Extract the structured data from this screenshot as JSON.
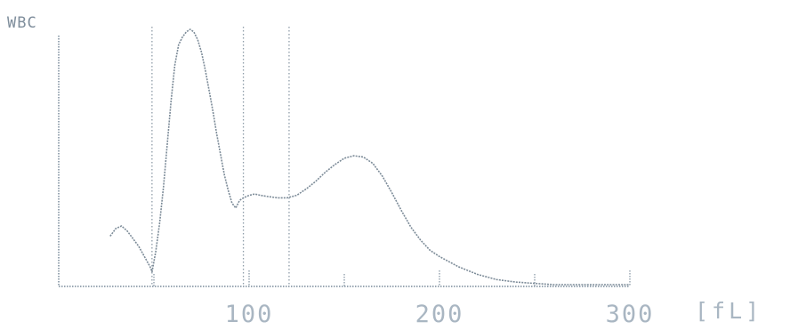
{
  "chart_data": {
    "type": "line",
    "title": "WBC",
    "xlabel": "[fL]",
    "ylabel": "",
    "xlim": [
      0,
      300
    ],
    "ylim": [
      0,
      100
    ],
    "x_ticks": [
      100,
      200,
      300
    ],
    "x_minor_ticks": [
      50,
      150,
      250
    ],
    "grid": false,
    "markers": [
      49,
      97,
      121
    ],
    "series": [
      {
        "x": [
          27,
          30,
          33,
          36,
          39,
          42,
          45,
          48,
          49,
          51,
          53,
          55,
          57,
          59,
          61,
          63,
          65,
          67,
          69,
          71,
          73,
          75,
          77,
          79,
          81,
          83,
          85,
          87,
          89,
          91,
          93,
          95,
          97,
          100,
          103,
          106,
          110,
          115,
          120,
          125,
          130,
          135,
          140,
          145,
          150,
          155,
          160,
          165,
          170,
          175,
          180,
          185,
          190,
          195,
          200,
          205,
          210,
          215,
          220,
          225,
          230,
          240,
          250,
          260,
          270,
          280,
          290,
          300
        ],
        "y": [
          19,
          22,
          23,
          21,
          18,
          15,
          11,
          7,
          5,
          13,
          24,
          38,
          55,
          72,
          86,
          94,
          97,
          99,
          100,
          99,
          96,
          91,
          84,
          76,
          68,
          59,
          51,
          43,
          37,
          32,
          30,
          33,
          34,
          35,
          35.5,
          35,
          34.5,
          34,
          34,
          35,
          37.5,
          40.5,
          44,
          47,
          49.5,
          50.5,
          50,
          47.5,
          42.5,
          36,
          29,
          22.5,
          17.5,
          13.5,
          11,
          9,
          7,
          5.5,
          4,
          3,
          2,
          1,
          0.5,
          0,
          0,
          0,
          0,
          0
        ]
      }
    ]
  }
}
